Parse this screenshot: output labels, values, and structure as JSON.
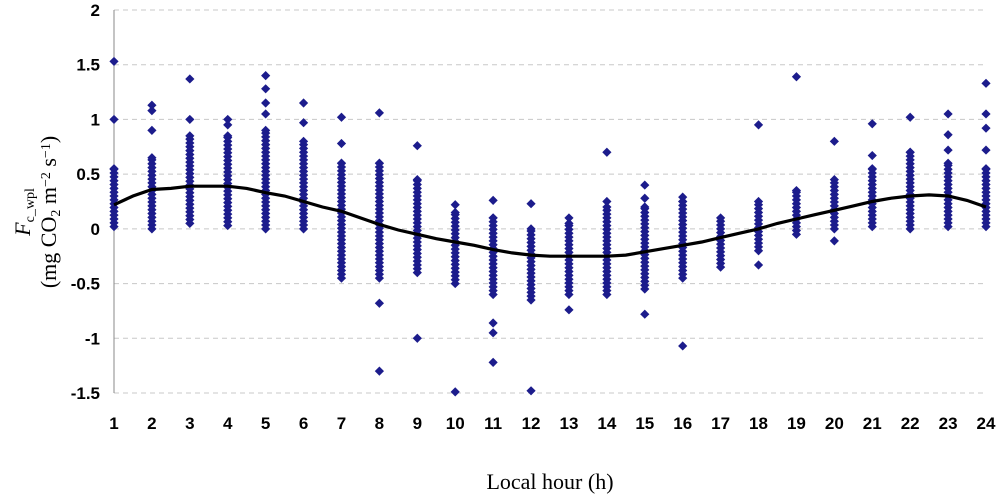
{
  "chart_data": {
    "type": "scatter",
    "xlabel": "Local hour (h)",
    "ylabel": {
      "symbol": "F",
      "symbol_sub": "c_wpl",
      "units_prefix": "(mg CO",
      "units_co2_sub": "2",
      "units_m": " m",
      "units_m_sup": "−2",
      "units_s": " s",
      "units_s_sup": "−1",
      "units_suffix": ")"
    },
    "x_ticks": [
      "1",
      "2",
      "3",
      "4",
      "5",
      "6",
      "7",
      "8",
      "9",
      "10",
      "11",
      "12",
      "13",
      "14",
      "15",
      "16",
      "17",
      "18",
      "19",
      "20",
      "21",
      "22",
      "23",
      "24"
    ],
    "y_ticks": [
      "2",
      "1.5",
      "1",
      "0.5",
      "0",
      "-0.5",
      "-1",
      "-1.5"
    ],
    "xlim": [
      1,
      24
    ],
    "ylim": [
      -1.5,
      2
    ],
    "grid": "horizontal dashed",
    "marker_color": "#1c1c8c",
    "line_color": "#000000",
    "scatter_ranges": [
      {
        "hour": 1,
        "low": 0.02,
        "high": 0.55
      },
      {
        "hour": 2,
        "low": 0.0,
        "high": 0.65
      },
      {
        "hour": 3,
        "low": 0.05,
        "high": 0.85
      },
      {
        "hour": 4,
        "low": 0.03,
        "high": 0.85
      },
      {
        "hour": 5,
        "low": 0.0,
        "high": 0.9
      },
      {
        "hour": 6,
        "low": 0.0,
        "high": 0.8
      },
      {
        "hour": 7,
        "low": -0.45,
        "high": 0.6
      },
      {
        "hour": 8,
        "low": -0.45,
        "high": 0.6
      },
      {
        "hour": 9,
        "low": -0.4,
        "high": 0.45
      },
      {
        "hour": 10,
        "low": -0.5,
        "high": 0.15
      },
      {
        "hour": 11,
        "low": -0.6,
        "high": 0.1
      },
      {
        "hour": 12,
        "low": -0.65,
        "high": 0.0
      },
      {
        "hour": 13,
        "low": -0.6,
        "high": 0.05
      },
      {
        "hour": 14,
        "low": -0.6,
        "high": 0.2
      },
      {
        "hour": 15,
        "low": -0.55,
        "high": 0.2
      },
      {
        "hour": 16,
        "low": -0.45,
        "high": 0.25
      },
      {
        "hour": 17,
        "low": -0.35,
        "high": 0.1
      },
      {
        "hour": 18,
        "low": -0.2,
        "high": 0.25
      },
      {
        "hour": 19,
        "low": -0.05,
        "high": 0.35
      },
      {
        "hour": 20,
        "low": 0.0,
        "high": 0.45
      },
      {
        "hour": 21,
        "low": 0.02,
        "high": 0.55
      },
      {
        "hour": 22,
        "low": 0.0,
        "high": 0.7
      },
      {
        "hour": 23,
        "low": 0.02,
        "high": 0.6
      },
      {
        "hour": 24,
        "low": 0.02,
        "high": 0.55
      }
    ],
    "outliers": [
      [
        1,
        1.53
      ],
      [
        1,
        1.0
      ],
      [
        2,
        1.13
      ],
      [
        2,
        1.08
      ],
      [
        2,
        0.9
      ],
      [
        3,
        1.37
      ],
      [
        3,
        1.0
      ],
      [
        4,
        1.0
      ],
      [
        4,
        0.95
      ],
      [
        5,
        1.4
      ],
      [
        5,
        1.28
      ],
      [
        5,
        1.15
      ],
      [
        5,
        1.05
      ],
      [
        6,
        1.15
      ],
      [
        6,
        0.97
      ],
      [
        7,
        1.02
      ],
      [
        7,
        0.78
      ],
      [
        8,
        1.06
      ],
      [
        8,
        -0.68
      ],
      [
        8,
        -1.3
      ],
      [
        9,
        0.76
      ],
      [
        9,
        -1.0
      ],
      [
        10,
        0.22
      ],
      [
        10,
        -1.49
      ],
      [
        11,
        0.26
      ],
      [
        11,
        -0.86
      ],
      [
        11,
        -0.95
      ],
      [
        11,
        -1.22
      ],
      [
        12,
        0.23
      ],
      [
        12,
        -1.48
      ],
      [
        13,
        0.1
      ],
      [
        13,
        -0.74
      ],
      [
        14,
        0.7
      ],
      [
        14,
        0.25
      ],
      [
        15,
        0.4
      ],
      [
        15,
        0.28
      ],
      [
        15,
        -0.78
      ],
      [
        16,
        0.29
      ],
      [
        16,
        -1.07
      ],
      [
        18,
        0.95
      ],
      [
        18,
        -0.33
      ],
      [
        19,
        1.39
      ],
      [
        20,
        0.8
      ],
      [
        20,
        -0.11
      ],
      [
        21,
        0.96
      ],
      [
        21,
        0.67
      ],
      [
        22,
        1.02
      ],
      [
        23,
        1.05
      ],
      [
        23,
        0.86
      ],
      [
        23,
        0.72
      ],
      [
        24,
        1.33
      ],
      [
        24,
        1.05
      ],
      [
        24,
        0.92
      ],
      [
        24,
        0.72
      ]
    ],
    "fit_line": {
      "x": [
        1,
        1.5,
        2,
        2.5,
        3,
        3.5,
        4,
        4.5,
        5,
        5.5,
        6,
        6.5,
        7,
        7.5,
        8,
        8.5,
        9,
        9.5,
        10,
        10.5,
        11,
        11.5,
        12,
        12.5,
        13,
        13.5,
        14,
        14.5,
        15,
        15.5,
        16,
        16.5,
        17,
        17.5,
        18,
        18.5,
        19,
        19.5,
        20,
        20.5,
        21,
        21.5,
        22,
        22.5,
        23,
        23.5,
        24
      ],
      "y": [
        0.22,
        0.3,
        0.36,
        0.37,
        0.39,
        0.39,
        0.39,
        0.37,
        0.33,
        0.3,
        0.25,
        0.2,
        0.16,
        0.1,
        0.04,
        -0.01,
        -0.05,
        -0.09,
        -0.12,
        -0.15,
        -0.19,
        -0.22,
        -0.24,
        -0.25,
        -0.25,
        -0.25,
        -0.25,
        -0.24,
        -0.21,
        -0.18,
        -0.15,
        -0.12,
        -0.08,
        -0.04,
        0.0,
        0.05,
        0.09,
        0.13,
        0.17,
        0.21,
        0.25,
        0.28,
        0.3,
        0.31,
        0.3,
        0.26,
        0.2
      ]
    }
  }
}
